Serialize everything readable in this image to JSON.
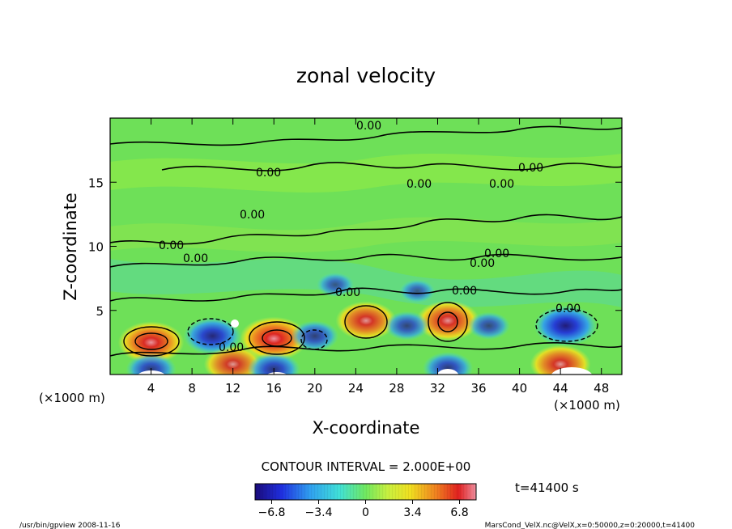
{
  "chart_data": {
    "type": "heatmap",
    "title": "zonal velocity",
    "xlabel": "X-coordinate",
    "ylabel": "Z-coordinate",
    "x_unit_left": "(×1000 m)",
    "x_unit_right": "(×1000 m)",
    "x_ticks": [
      "4",
      "8",
      "12",
      "16",
      "20",
      "24",
      "28",
      "32",
      "36",
      "40",
      "44",
      "48"
    ],
    "y_ticks": [
      "5",
      "10",
      "15"
    ],
    "xlim": [
      0,
      50
    ],
    "ylim": [
      0,
      20
    ],
    "contour_interval_text": "CONTOUR INTERVAL = 2.000E+00",
    "contour_labels": [
      "0.00",
      "0.00",
      "0.00",
      "0.00",
      "0.00",
      "0.00",
      "0.00",
      "0.00",
      "0.00",
      "0.00",
      "0.00",
      "0.00",
      "0.00",
      "0.00"
    ],
    "colorbar": {
      "ticks": [
        "−6.8",
        "−3.4",
        "0",
        "3.4",
        "6.8"
      ],
      "range": [
        -8,
        8
      ],
      "colors": [
        "#1a0a7a",
        "#1f2fe0",
        "#30a0f0",
        "#40e0d8",
        "#70e860",
        "#c8f040",
        "#f0e020",
        "#f08020",
        "#e02020",
        "#f090a0"
      ]
    },
    "time_label": "t=41400 s",
    "cells": [
      {
        "x": 4,
        "z": 2.5,
        "v": 7.0
      },
      {
        "x": 16,
        "z": 2.8,
        "v": 7.5
      },
      {
        "x": 25,
        "z": 4.2,
        "v": 6.0
      },
      {
        "x": 33,
        "z": 4.2,
        "v": 6.5
      },
      {
        "x": 12,
        "z": 0.8,
        "v": 5.5
      },
      {
        "x": 44,
        "z": 0.8,
        "v": 6.0
      },
      {
        "x": 10,
        "z": 3.0,
        "v": -5.5
      },
      {
        "x": 44.5,
        "z": 3.8,
        "v": -6.5
      },
      {
        "x": 20,
        "z": 3.0,
        "v": -3.5
      },
      {
        "x": 29,
        "z": 3.8,
        "v": -3.0
      },
      {
        "x": 37,
        "z": 3.8,
        "v": -2.5
      },
      {
        "x": 4,
        "z": 0.4,
        "v": -4.0
      },
      {
        "x": 16,
        "z": 0.4,
        "v": -4.5
      },
      {
        "x": 33,
        "z": 0.5,
        "v": -4.0
      },
      {
        "x": 22,
        "z": 7.0,
        "v": -1.5
      },
      {
        "x": 30,
        "z": 6.5,
        "v": -1.2
      }
    ]
  },
  "footer": {
    "left": "/usr/bin/gpview   2008-11-16",
    "right": "MarsCond_VelX.nc@VelX,x=0:50000,z=0:20000,t=41400"
  }
}
